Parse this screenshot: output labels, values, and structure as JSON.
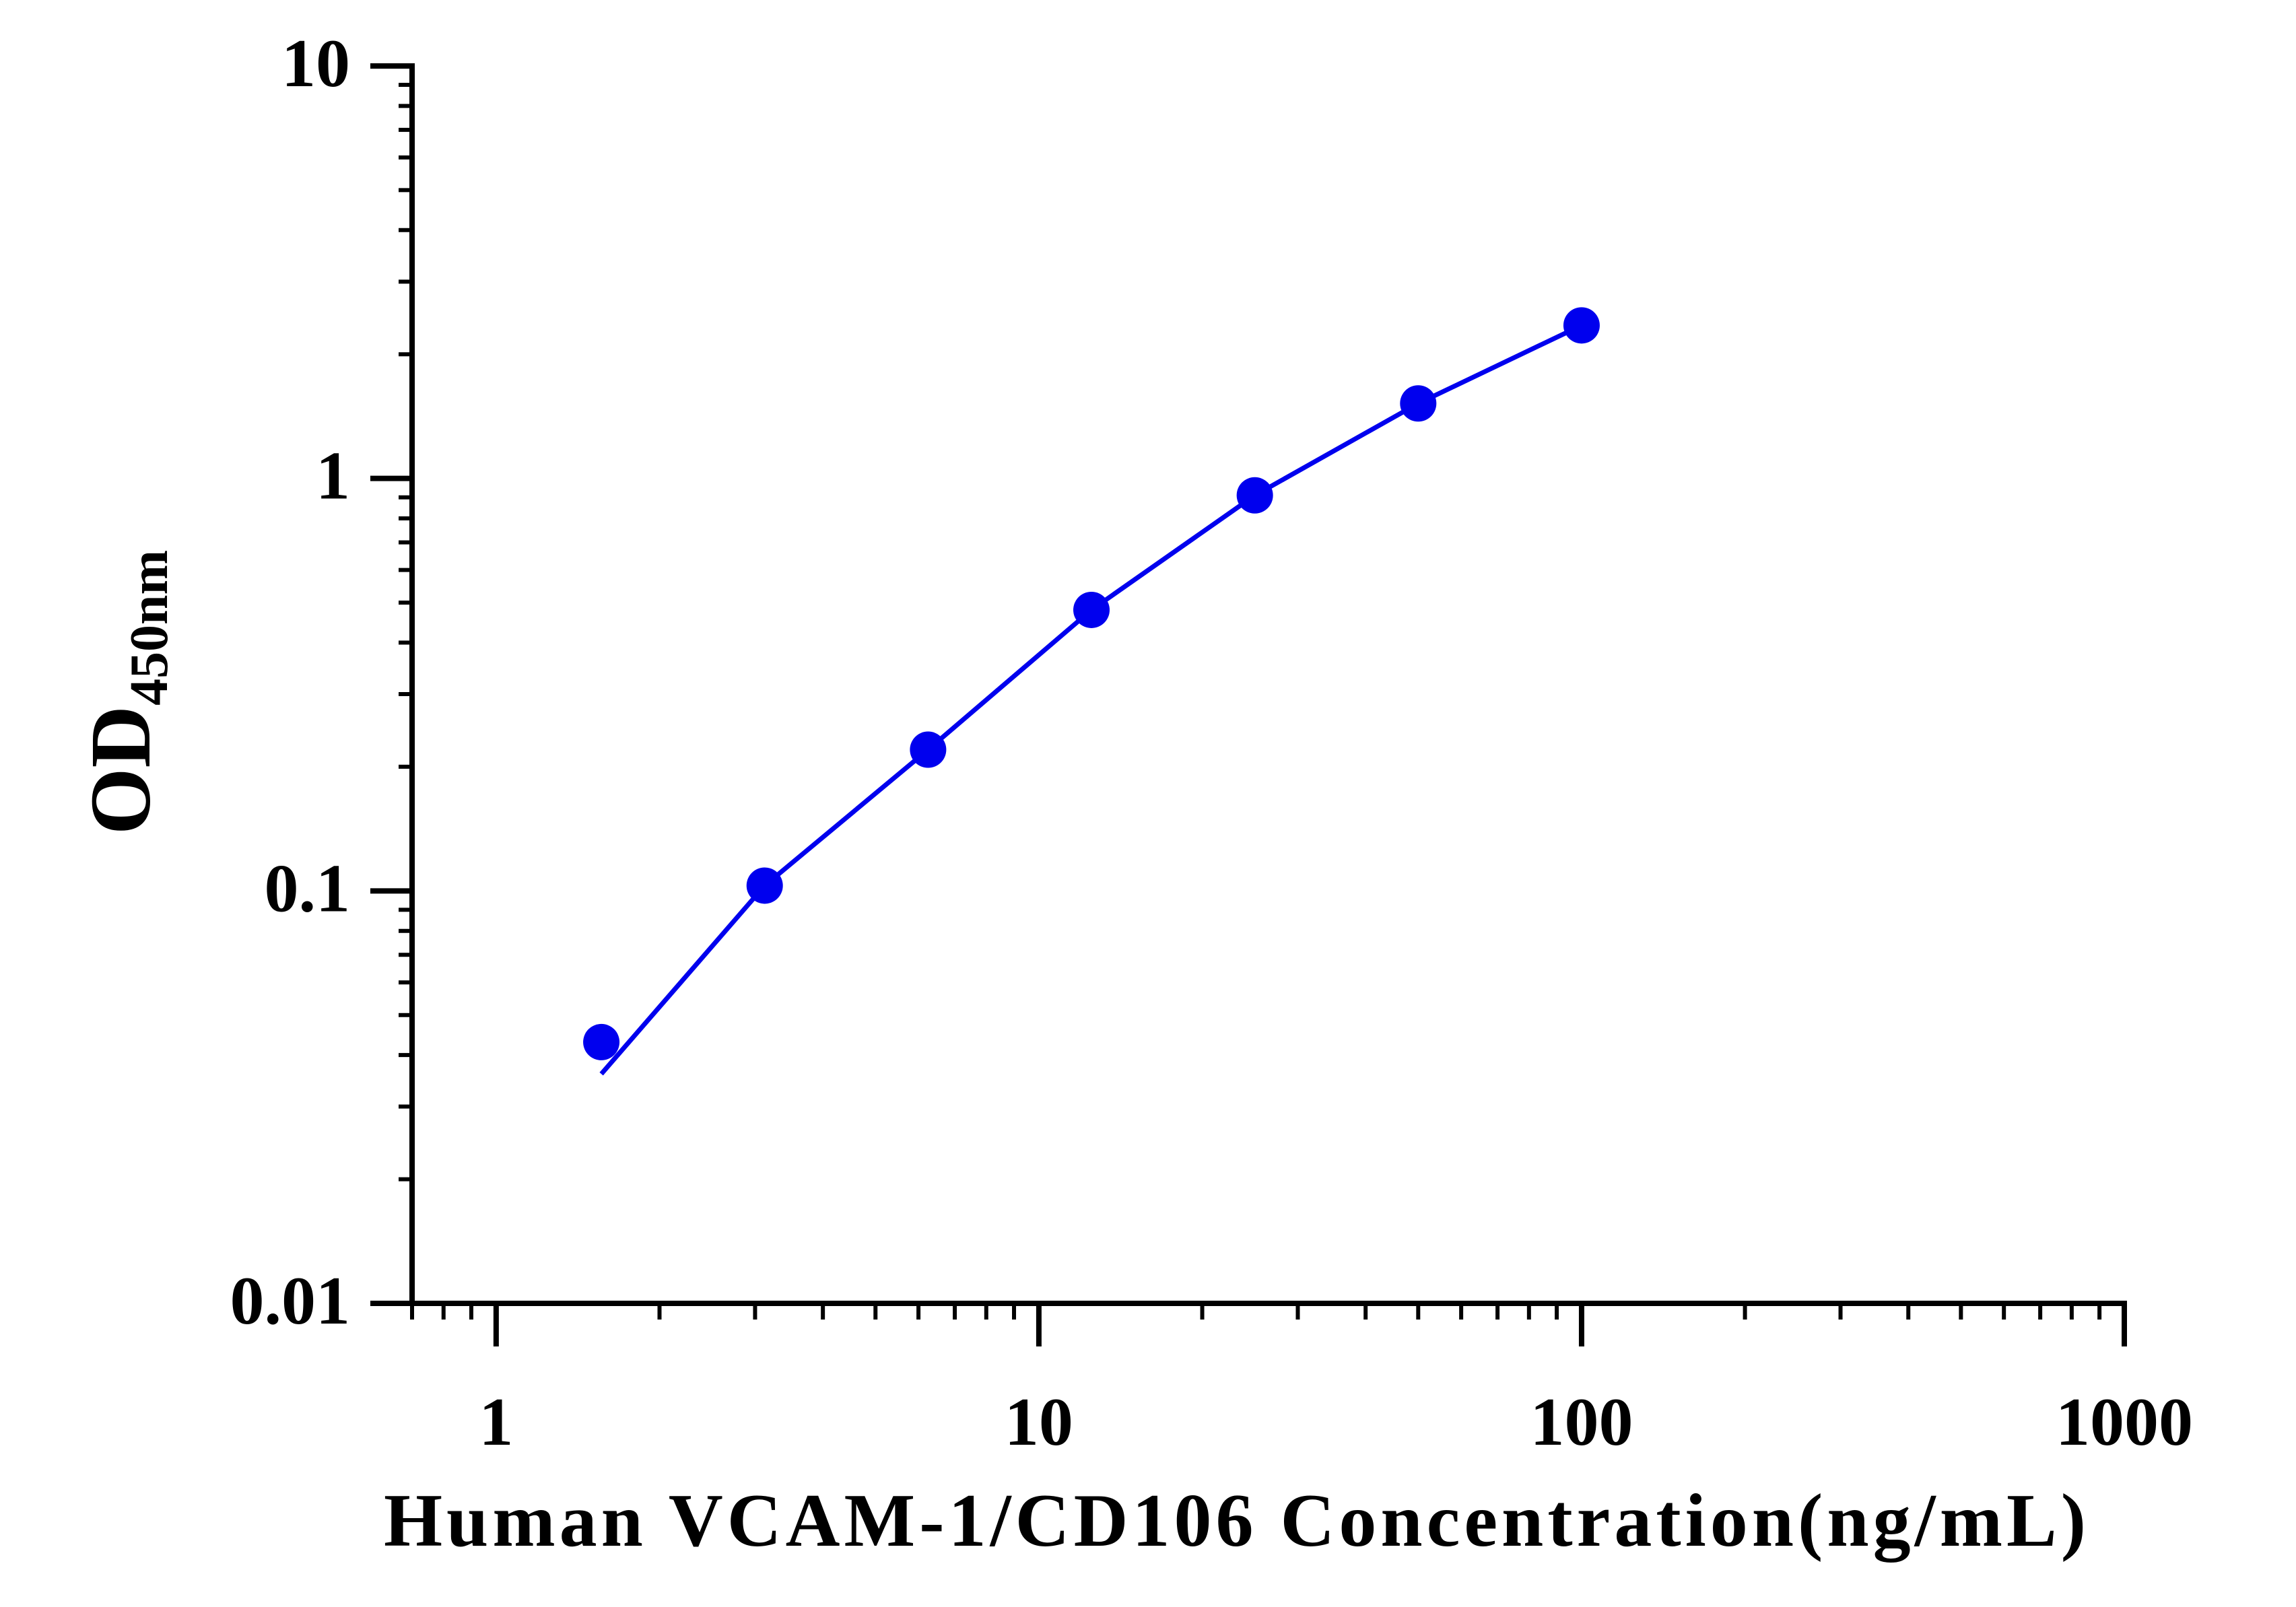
{
  "chart_data": {
    "type": "line",
    "xlabel": "Human VCAM-1/CD106 Concentration(ng/mL)",
    "ylabel": "OD",
    "ylabel_subscript": "450nm",
    "x_scale": "log",
    "y_scale": "log",
    "xlim": [
      0.7,
      1000
    ],
    "ylim": [
      0.01,
      10
    ],
    "x_ticks": [
      1,
      10,
      100,
      1000
    ],
    "x_tick_labels": [
      "1",
      "10",
      "100",
      "1000"
    ],
    "y_ticks": [
      0.01,
      0.1,
      1,
      10
    ],
    "y_tick_labels": [
      "0.01",
      "0.1",
      "1",
      "10"
    ],
    "grid": false,
    "legend": false,
    "series": [
      {
        "color": "#0000ee",
        "x": [
          1.5625,
          3.125,
          6.25,
          12.5,
          25,
          50,
          100
        ],
        "y": [
          0.043,
          0.103,
          0.22,
          0.48,
          0.91,
          1.52,
          2.35
        ]
      }
    ],
    "fit_curve": {
      "color": "#0000ee",
      "x": [
        1.5625,
        3.125,
        6.25,
        12.5,
        25,
        50,
        100
      ],
      "y": [
        0.036,
        0.103,
        0.22,
        0.48,
        0.91,
        1.52,
        2.35
      ]
    }
  }
}
